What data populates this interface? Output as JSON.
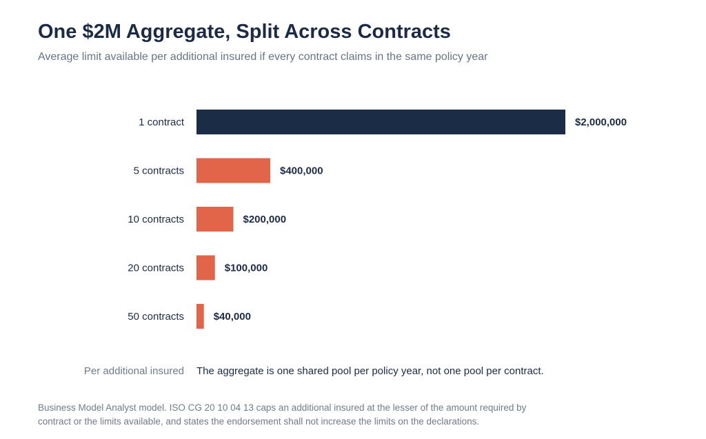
{
  "header": {
    "title": "One $2M Aggregate, Split Across Contracts",
    "subtitle": "Average limit available per additional insured if every contract claims in the same policy year"
  },
  "chart_data": {
    "type": "bar",
    "orientation": "horizontal",
    "title": "One $2M Aggregate, Split Across Contracts",
    "subtitle": "Average limit available per additional insured if every contract claims in the same policy year",
    "categories": [
      "1 contract",
      "5 contracts",
      "10 contracts",
      "20 contracts",
      "50 contracts"
    ],
    "values": [
      2000000,
      400000,
      200000,
      100000,
      40000
    ],
    "value_labels": [
      "$2,000,000",
      "$400,000",
      "$200,000",
      "$100,000",
      "$40,000"
    ],
    "xlim": [
      0,
      2000000
    ],
    "grid": false,
    "colors": {
      "highlight": "#1b2d46",
      "default": "#e2654a",
      "value_label": "#1b2b45",
      "category_label": "#1b2b45"
    },
    "highlight_index": 0
  },
  "axis_caption": "Per additional insured",
  "axis_note": "The aggregate is one shared pool per policy year, not one pool per contract.",
  "footnote": "Business Model Analyst model. ISO CG 20 10 04 13 caps an additional insured at the lesser of the amount required by contract or the limits available, and states the endorsement shall not increase the limits on the declarations."
}
